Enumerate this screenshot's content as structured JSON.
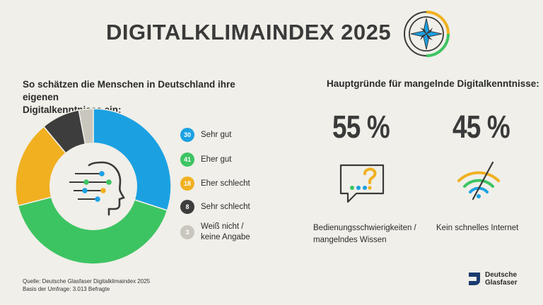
{
  "header": {
    "title": "DIGITALKLIMAINDEX 2025",
    "compass_icon": "compass-icon"
  },
  "left": {
    "heading_line1": "So schätzen die Menschen in Deutschland ihre eigenen",
    "heading_line2": "Digitalkenntnisse ein:"
  },
  "right": {
    "heading": "Hauptgründe für mangelnde Digitalkenntnisse:",
    "stats": [
      {
        "value": "55 %",
        "label_line1": "Bedienungsschwierigkeiten /",
        "label_line2": "mangelndes Wissen",
        "icon": "speech-bubble-question-icon"
      },
      {
        "value": "45 %",
        "label_line1": "Kein schnelles Internet",
        "label_line2": "",
        "icon": "wifi-off-icon"
      }
    ]
  },
  "chart_data": {
    "type": "pie",
    "variant": "donut",
    "categories": [
      "Sehr gut",
      "Eher gut",
      "Eher schlecht",
      "Sehr schlecht",
      "Weiß nicht / keine Angabe"
    ],
    "values": [
      30,
      41,
      18,
      8,
      3
    ],
    "colors": [
      "#1ba1e2",
      "#3dc462",
      "#f0b020",
      "#3d3d3d",
      "#c9c7bd"
    ],
    "center_icon": "digital-head-icon",
    "legend": [
      {
        "value": "30",
        "label_line1": "Sehr gut",
        "label_line2": ""
      },
      {
        "value": "41",
        "label_line1": "Eher gut",
        "label_line2": ""
      },
      {
        "value": "18",
        "label_line1": "Eher schlecht",
        "label_line2": ""
      },
      {
        "value": "8",
        "label_line1": "Sehr schlecht",
        "label_line2": ""
      },
      {
        "value": "3",
        "label_line1": "Weiß nicht /",
        "label_line2": "keine Angabe"
      }
    ],
    "legend_placement": "right"
  },
  "footer": {
    "source_line1": "Quelle: Deutsche Glasfaser Digitalklimaindex 2025",
    "source_line2": "Basis der Umfrage: 3.013 Befragte",
    "logo_line1": "Deutsche",
    "logo_line2": "Glasfaser",
    "logo_icon": "deutsche-glasfaser-logo-icon"
  }
}
